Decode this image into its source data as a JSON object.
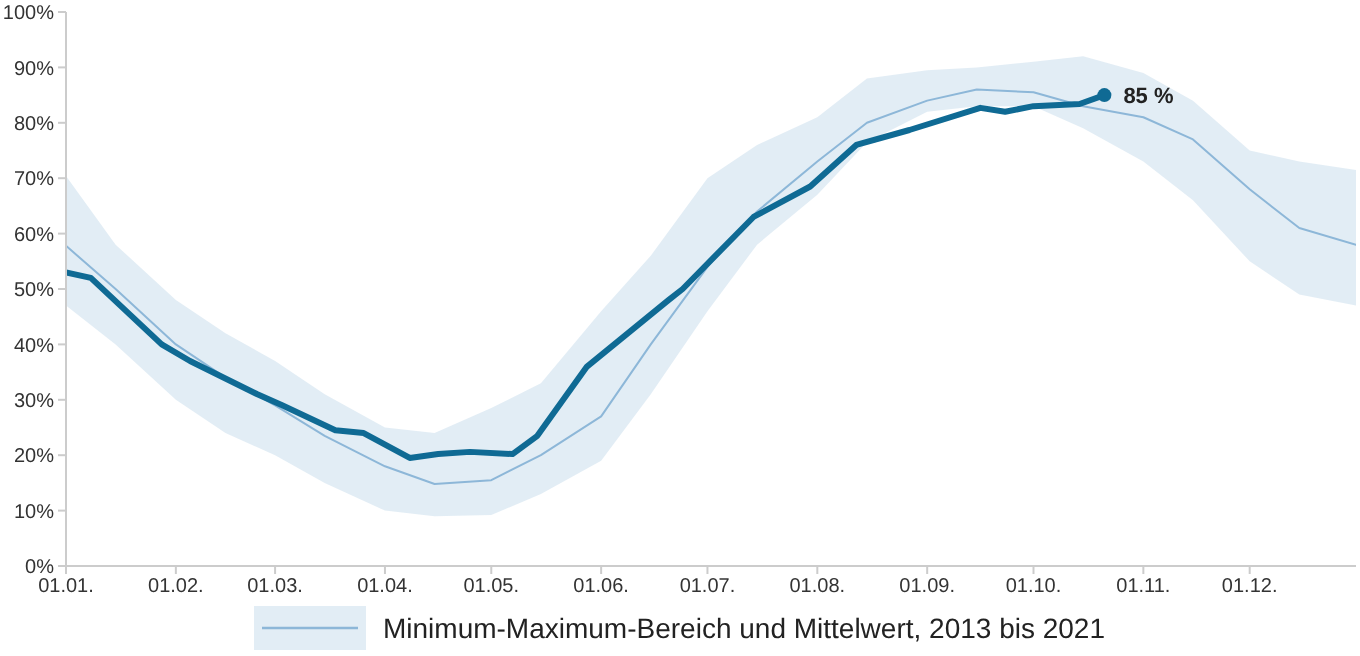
{
  "chart_data": {
    "type": "line",
    "xlim": [
      "--01-01",
      "--12-31"
    ],
    "xticks": [
      {
        "value": "--01-01",
        "label": "01.01."
      },
      {
        "value": "--02-01",
        "label": "01.02."
      },
      {
        "value": "--03-01",
        "label": "01.03."
      },
      {
        "value": "--04-01",
        "label": "01.04."
      },
      {
        "value": "--05-01",
        "label": "01.05."
      },
      {
        "value": "--06-01",
        "label": "01.06."
      },
      {
        "value": "--07-01",
        "label": "01.07."
      },
      {
        "value": "--08-01",
        "label": "01.08."
      },
      {
        "value": "--09-01",
        "label": "01.09."
      },
      {
        "value": "--10-01",
        "label": "01.10."
      },
      {
        "value": "--11-01",
        "label": "01.11."
      },
      {
        "value": "--12-01",
        "label": "01.12."
      }
    ],
    "ylim": [
      0,
      100
    ],
    "yticks": [
      {
        "value": 0,
        "label": "0%"
      },
      {
        "value": 10,
        "label": "10%"
      },
      {
        "value": 20,
        "label": "20%"
      },
      {
        "value": 30,
        "label": "30%"
      },
      {
        "value": 40,
        "label": "40%"
      },
      {
        "value": 50,
        "label": "50%"
      },
      {
        "value": 60,
        "label": "60%"
      },
      {
        "value": 70,
        "label": "70%"
      },
      {
        "value": 80,
        "label": "80%"
      },
      {
        "value": 90,
        "label": "90%"
      },
      {
        "value": 100,
        "label": "100%"
      }
    ],
    "legend": "bottom",
    "marker": "none",
    "series": [
      {
        "name": "Minimum-Maximum-Bereich und Mittelwert, 2013 bis 2021",
        "color": "#8db7d8",
        "x": [
          "--01-01",
          "--01-15",
          "--02-01",
          "--02-15",
          "--03-01",
          "--03-15",
          "--04-01",
          "--04-15",
          "--05-01",
          "--05-15",
          "--06-01",
          "--06-15",
          "--07-01",
          "--07-15",
          "--08-01",
          "--08-15",
          "--09-01",
          "--09-15",
          "--10-01",
          "--10-15",
          "--11-01",
          "--11-15",
          "--12-01",
          "--12-15",
          "--12-31"
        ],
        "values": [
          57.8,
          50,
          40,
          34,
          29,
          23.5,
          18,
          14.8,
          15.5,
          20,
          27,
          40,
          54,
          64,
          73,
          80,
          84,
          86,
          85.5,
          83,
          81,
          77,
          68,
          61,
          58
        ],
        "upper": [
          70.4,
          58,
          48,
          42,
          37,
          31,
          25,
          24,
          28.5,
          33,
          46,
          56,
          70,
          76,
          81,
          88,
          89.5,
          90,
          91,
          92,
          89,
          84,
          75,
          73,
          71.5
        ],
        "lower": [
          47,
          40,
          30,
          24,
          20,
          15,
          10,
          9,
          9.2,
          13,
          19,
          31,
          46,
          58,
          67,
          76.5,
          82,
          83,
          83,
          79,
          73,
          66,
          55,
          49,
          47
        ]
      },
      {
        "color": "#0f6a94",
        "x": [
          "--01-01",
          "--01-08",
          "--01-28",
          "--02-05",
          "--02-24",
          "--03-03",
          "--03-18",
          "--03-26",
          "--04-08",
          "--04-16",
          "--04-25",
          "--05-07",
          "--05-14",
          "--05-28",
          "--06-20",
          "--06-24",
          "--07-14",
          "--07-30",
          "--08-12",
          "--08-27",
          "--09-16",
          "--09-23",
          "--10-01",
          "--10-14",
          "--10-21"
        ],
        "values": [
          53,
          52,
          40,
          37,
          31,
          29,
          24.5,
          24,
          19.5,
          20.2,
          20.6,
          20.2,
          23.5,
          36,
          48,
          50,
          63,
          68.5,
          76,
          78.7,
          82.7,
          82,
          83,
          83.4,
          85
        ]
      }
    ],
    "annotations": [
      {
        "text": "85 %",
        "x": "--10-21",
        "y": 85
      }
    ]
  }
}
